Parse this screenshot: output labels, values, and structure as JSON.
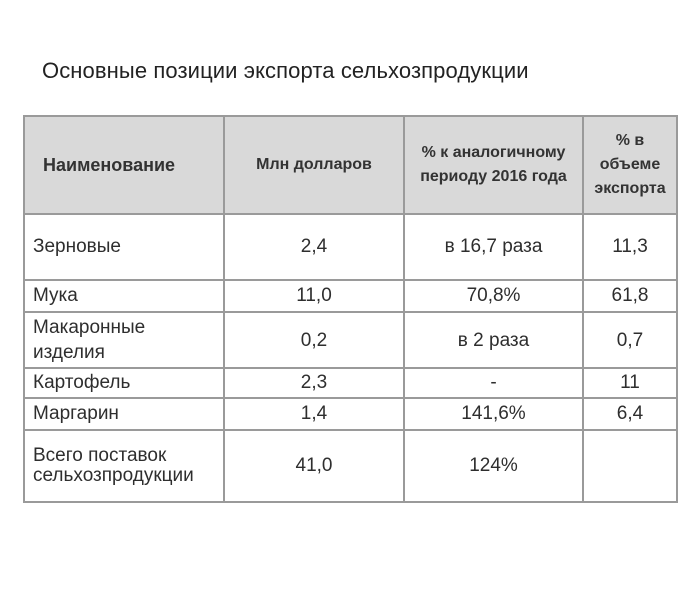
{
  "title": "Основные позиции экспорта сельхозпродукции",
  "table": {
    "headers": {
      "name": "Наименование",
      "mln_usd": "Млн долларов",
      "pct_vs_2016": "% к аналогичному периоду 2016 года",
      "pct_export": "% в объеме экспорта"
    },
    "rows": [
      {
        "name": "Зерновые",
        "mln_usd": "2,4",
        "pct_vs_2016": "в 16,7 раза",
        "pct_export": "11,3"
      },
      {
        "name": "Мука",
        "mln_usd": "11,0",
        "pct_vs_2016": "70,8%",
        "pct_export": "61,8"
      },
      {
        "name": "Макаронные изделия",
        "mln_usd": "0,2",
        "pct_vs_2016": "в 2 раза",
        "pct_export": "0,7"
      },
      {
        "name": "Картофель",
        "mln_usd": "2,3",
        "pct_vs_2016": "-",
        "pct_export": "11"
      },
      {
        "name": "Маргарин",
        "mln_usd": "1,4",
        "pct_vs_2016": "141,6%",
        "pct_export": "6,4"
      }
    ],
    "total": {
      "name": "Всего поставок сельхозпродукции",
      "mln_usd": "41,0",
      "pct_vs_2016": "124%",
      "pct_export": ""
    }
  }
}
